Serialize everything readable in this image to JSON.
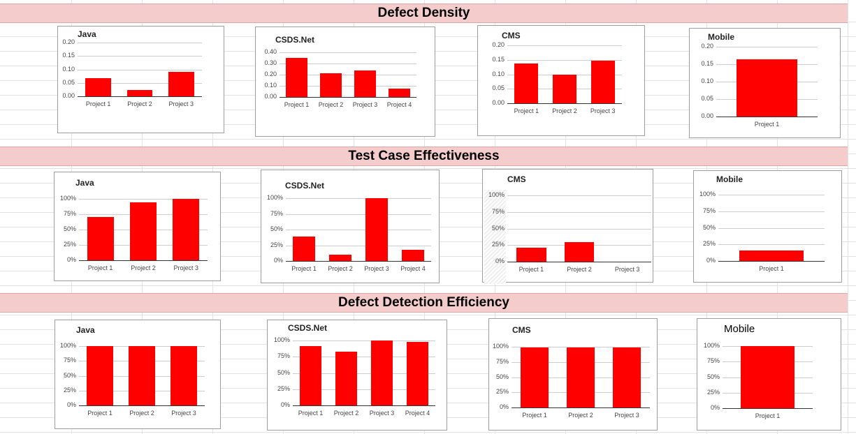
{
  "sections": [
    {
      "title": "Defect Density"
    },
    {
      "title": "Test Case Effectiveness"
    },
    {
      "title": "Defect Detection Efficiency"
    }
  ],
  "colors": {
    "bar": "#ff0000",
    "section_band": "#f4cccc"
  },
  "chart_data": [
    {
      "type": "bar",
      "section": "Defect Density",
      "title": "Java",
      "categories": [
        "Project 1",
        "Project 2",
        "Project 3"
      ],
      "values": [
        0.067,
        0.023,
        0.091
      ],
      "ylim": [
        0,
        0.2
      ],
      "yticks": [
        "0.00",
        "0.05",
        "0.10",
        "0.15",
        "0.20"
      ],
      "grid": true
    },
    {
      "type": "bar",
      "section": "Defect Density",
      "title": "CSDS.Net",
      "categories": [
        "Project 1",
        "Project 2",
        "Project 3",
        "Project 4"
      ],
      "values": [
        0.35,
        0.21,
        0.235,
        0.078
      ],
      "ylim": [
        0,
        0.4
      ],
      "yticks": [
        "0.00",
        "0.10",
        "0.20",
        "0.30",
        "0.40"
      ],
      "grid": true
    },
    {
      "type": "bar",
      "section": "Defect Density",
      "title": "CMS",
      "categories": [
        "Project 1",
        "Project 2",
        "Project 3"
      ],
      "values": [
        0.137,
        0.1,
        0.148
      ],
      "ylim": [
        0,
        0.2
      ],
      "yticks": [
        "0.00",
        "0.05",
        "0.10",
        "0.15",
        "0.20"
      ],
      "grid": true
    },
    {
      "type": "bar",
      "section": "Defect Density",
      "title": "Mobile",
      "categories": [
        "Project 1"
      ],
      "values": [
        0.165
      ],
      "ylim": [
        0,
        0.2
      ],
      "yticks": [
        "0.00",
        "0.05",
        "0.10",
        "0.15",
        "0.20"
      ],
      "grid": true
    },
    {
      "type": "bar",
      "section": "Test Case Effectiveness",
      "title": "Java",
      "categories": [
        "Project 1",
        "Project 2",
        "Project 3"
      ],
      "values": [
        71,
        94,
        100
      ],
      "ylim": [
        0,
        100
      ],
      "yticks": [
        "0%",
        "25%",
        "50%",
        "75%",
        "100%"
      ],
      "grid": true
    },
    {
      "type": "bar",
      "section": "Test Case Effectiveness",
      "title": "CSDS.Net",
      "categories": [
        "Project 1",
        "Project 2",
        "Project 3",
        "Project 4"
      ],
      "values": [
        39,
        10,
        100,
        18
      ],
      "ylim": [
        0,
        100
      ],
      "yticks": [
        "0%",
        "25%",
        "50%",
        "75%",
        "100%"
      ],
      "grid": true
    },
    {
      "type": "bar",
      "section": "Test Case Effectiveness",
      "title": "CMS",
      "categories": [
        "Project 1",
        "Project 2",
        "Project 3"
      ],
      "values": [
        21,
        29,
        0
      ],
      "ylim": [
        0,
        100
      ],
      "yticks": [
        "0%",
        "25%",
        "50%",
        "75%",
        "100%"
      ],
      "grid": true
    },
    {
      "type": "bar",
      "section": "Test Case Effectiveness",
      "title": "Mobile",
      "categories": [
        "Project 1"
      ],
      "values": [
        16
      ],
      "ylim": [
        0,
        100
      ],
      "yticks": [
        "0%",
        "25%",
        "50%",
        "75%",
        "100%"
      ],
      "grid": true
    },
    {
      "type": "bar",
      "section": "Defect Detection Efficiency",
      "title": "Java",
      "categories": [
        "Project 1",
        "Project 2",
        "Project 3"
      ],
      "values": [
        100,
        100,
        100
      ],
      "ylim": [
        0,
        100
      ],
      "yticks": [
        "0%",
        "25%",
        "50%",
        "75%",
        "100%"
      ],
      "grid": true
    },
    {
      "type": "bar",
      "section": "Defect Detection Efficiency",
      "title": "CSDS.Net",
      "categories": [
        "Project 1",
        "Project 2",
        "Project 3",
        "Project 4"
      ],
      "values": [
        91,
        83,
        100,
        98
      ],
      "ylim": [
        0,
        100
      ],
      "yticks": [
        "0%",
        "25%",
        "50%",
        "75%",
        "100%"
      ],
      "grid": true
    },
    {
      "type": "bar",
      "section": "Defect Detection Efficiency",
      "title": "CMS",
      "categories": [
        "Project 1",
        "Project 2",
        "Project 3"
      ],
      "values": [
        99,
        99,
        99
      ],
      "ylim": [
        0,
        100
      ],
      "yticks": [
        "0%",
        "25%",
        "50%",
        "75%",
        "100%"
      ],
      "grid": true
    },
    {
      "type": "bar",
      "section": "Defect Detection Efficiency",
      "title": "Mobile",
      "categories": [
        "Project 1"
      ],
      "values": [
        100
      ],
      "ylim": [
        0,
        100
      ],
      "yticks": [
        "0%",
        "25%",
        "50%",
        "75%",
        "100%"
      ],
      "grid": true
    }
  ]
}
